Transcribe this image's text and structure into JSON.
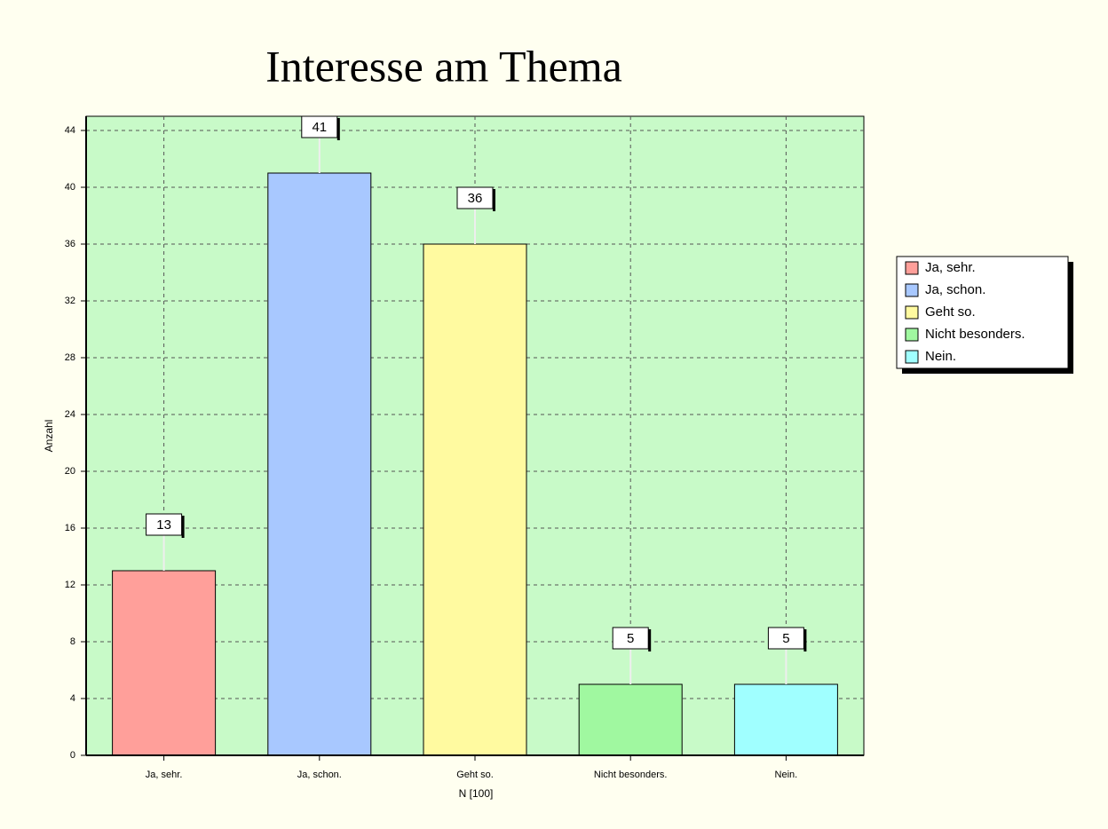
{
  "chart_data": {
    "type": "bar",
    "title": "Interesse am Thema",
    "categories": [
      "Ja, sehr.",
      "Ja, schon.",
      "Geht so.",
      "Nicht besonders.",
      "Nein."
    ],
    "values": [
      13,
      41,
      36,
      5,
      5
    ],
    "colors": [
      "#ff9f9a",
      "#a8c8ff",
      "#fffaa0",
      "#a0f8a0",
      "#a0ffff"
    ],
    "x_label": "N [100]",
    "y_label": "Anzahl",
    "ylim": [
      0,
      45
    ],
    "yticks": [
      0,
      4,
      8,
      12,
      16,
      20,
      24,
      28,
      32,
      36,
      40,
      44
    ],
    "grid": true,
    "legend": "right"
  }
}
